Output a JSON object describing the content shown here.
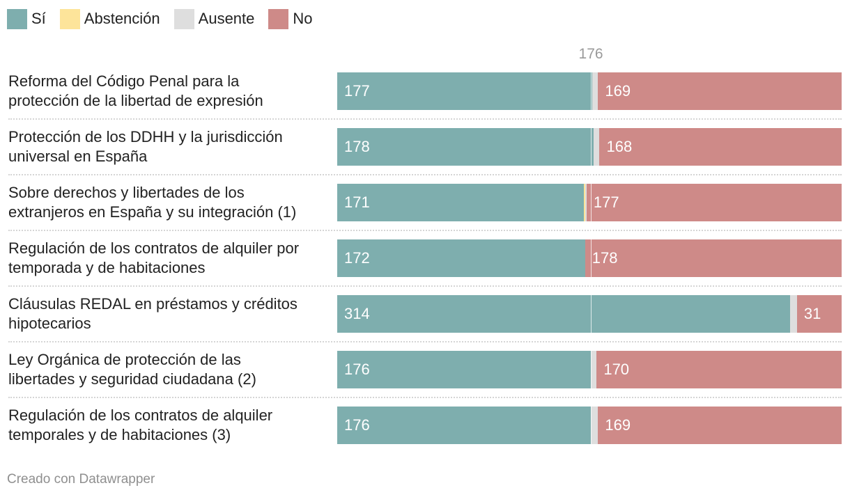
{
  "legend": [
    {
      "label": "Sí",
      "color": "#7eaeae"
    },
    {
      "label": "Abstención",
      "color": "#fde49a"
    },
    {
      "label": "Ausente",
      "color": "#dedede"
    },
    {
      "label": "No",
      "color": "#ce8a88"
    }
  ],
  "marker": {
    "label": "176",
    "value": 176
  },
  "footer": "Creado con Datawrapper",
  "chart_data": {
    "type": "bar",
    "stacked": true,
    "orientation": "horizontal",
    "total": 350,
    "reference_line": 176,
    "categories": [
      "Reforma del Código Penal para la protección de la libertad de expresión",
      "Protección de los DDHH y la jurisdicción universal en España",
      "Sobre derechos y libertades de los extranjeros en España y su integración (1)",
      "Regulación de los contratos de alquiler por temporada y de habitaciones",
      "Cláusulas REDAL en préstamos y créditos hipotecarios",
      "Ley Orgánica de protección de las libertades y seguridad ciudadana (2)",
      "Regulación de los contratos de alquiler temporales y de habitaciones (3)"
    ],
    "label_lines": [
      [
        "Reforma del Código Penal para la",
        "protección de la libertad de expresión"
      ],
      [
        "Protección de los DDHH y la jurisdicción",
        "universal en España"
      ],
      [
        "Sobre derechos y libertades de los",
        "extranjeros en España y su integración (1)"
      ],
      [
        "Regulación de los contratos de alquiler por",
        "temporada y de habitaciones"
      ],
      [
        "Cláusulas REDAL en préstamos y créditos",
        "hipotecarios"
      ],
      [
        "Ley Orgánica de protección de las",
        "libertades y seguridad ciudadana (2)"
      ],
      [
        "Regulación de los contratos de alquiler",
        "temporales y de habitaciones (3)"
      ]
    ],
    "series": [
      {
        "name": "Sí",
        "color": "#7eaeae",
        "values": [
          177,
          178,
          171,
          172,
          314,
          176,
          176
        ]
      },
      {
        "name": "Abstención",
        "color": "#fde49a",
        "values": [
          0,
          0,
          1,
          0,
          0,
          0,
          0
        ]
      },
      {
        "name": "Ausente",
        "color": "#dedede",
        "values": [
          4,
          4,
          1,
          0,
          5,
          4,
          5
        ]
      },
      {
        "name": "No",
        "color": "#ce8a88",
        "values": [
          169,
          168,
          177,
          178,
          31,
          170,
          169
        ]
      }
    ]
  }
}
